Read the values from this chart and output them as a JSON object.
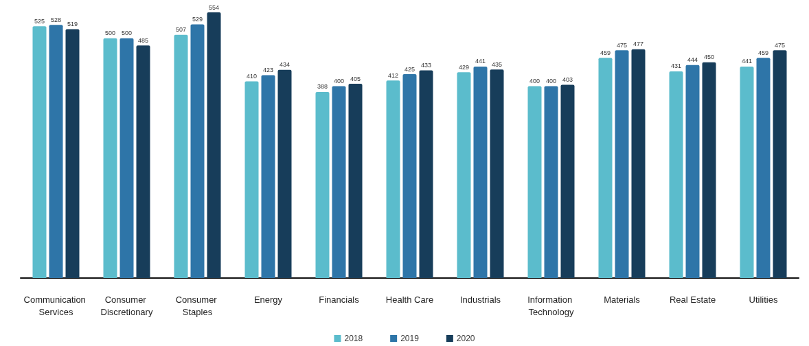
{
  "chart_data": {
    "type": "bar",
    "categories": [
      "Communication Services",
      "Consumer Discretionary",
      "Consumer Staples",
      "Energy",
      "Financials",
      "Health Care",
      "Industrials",
      "Information Technology",
      "Materials",
      "Real Estate",
      "Utilities"
    ],
    "series": [
      {
        "name": "2018",
        "color": "#5bbccc",
        "values": [
          525,
          500,
          507,
          410,
          388,
          412,
          429,
          400,
          459,
          431,
          441
        ]
      },
      {
        "name": "2019",
        "color": "#2e75a8",
        "values": [
          528,
          500,
          529,
          423,
          400,
          425,
          441,
          400,
          475,
          444,
          459
        ]
      },
      {
        "name": "2020",
        "color": "#173d5a",
        "values": [
          519,
          485,
          554,
          434,
          405,
          433,
          435,
          403,
          477,
          450,
          475
        ]
      }
    ],
    "data_labels": true,
    "grid": false,
    "legend": "bottom"
  }
}
